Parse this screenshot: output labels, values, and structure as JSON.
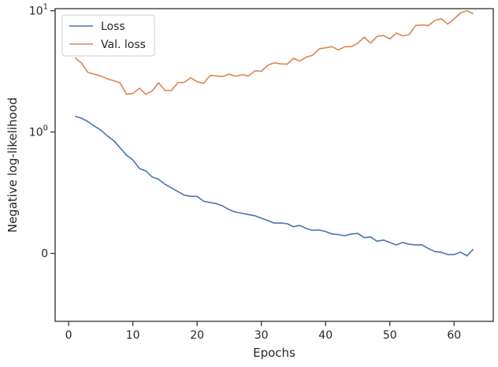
{
  "chart_data": {
    "type": "line",
    "xlabel": "Epochs",
    "ylabel": "Negative log-likelihood",
    "yscale": "symlog",
    "xlim": [
      -2.1,
      66.1
    ],
    "ylim": [
      -0.56,
      10.4
    ],
    "x_ticks": [
      0,
      10,
      20,
      30,
      40,
      50,
      60
    ],
    "x_tick_labels": [
      "0",
      "10",
      "20",
      "30",
      "40",
      "50",
      "60"
    ],
    "y_ticks": [
      {
        "value": 0,
        "label": "0",
        "exp": ""
      },
      {
        "value": 1,
        "label": "10",
        "exp": "0"
      },
      {
        "value": 10,
        "label": "10",
        "exp": "1"
      }
    ],
    "grid": false,
    "legend": "top-left",
    "series": [
      {
        "name": "Loss",
        "color": "#4c72b0",
        "x": [
          1,
          2,
          3,
          4,
          5,
          6,
          7,
          8,
          9,
          10,
          11,
          12,
          13,
          14,
          15,
          16,
          17,
          18,
          19,
          20,
          21,
          22,
          23,
          24,
          25,
          26,
          27,
          28,
          29,
          30,
          31,
          32,
          33,
          34,
          35,
          36,
          37,
          38,
          39,
          40,
          41,
          42,
          43,
          44,
          45,
          46,
          47,
          48,
          49,
          50,
          51,
          52,
          53,
          54,
          55,
          56,
          57,
          58,
          59,
          60,
          61,
          62,
          63
        ],
        "values": [
          1.35,
          1.3,
          1.22,
          1.12,
          1.04,
          0.97,
          0.93,
          0.87,
          0.81,
          0.77,
          0.7,
          0.68,
          0.63,
          0.61,
          0.57,
          0.54,
          0.51,
          0.48,
          0.47,
          0.47,
          0.43,
          0.42,
          0.41,
          0.39,
          0.36,
          0.34,
          0.33,
          0.32,
          0.31,
          0.29,
          0.27,
          0.25,
          0.25,
          0.245,
          0.22,
          0.23,
          0.205,
          0.19,
          0.193,
          0.18,
          0.16,
          0.155,
          0.145,
          0.16,
          0.165,
          0.13,
          0.135,
          0.1,
          0.11,
          0.09,
          0.07,
          0.09,
          0.075,
          0.07,
          0.07,
          0.04,
          0.015,
          0.01,
          -0.01,
          -0.01,
          0.01,
          -0.02,
          0.035
        ]
      },
      {
        "name": "Val. loss",
        "color": "#dd8452",
        "x": [
          1,
          2,
          3,
          4,
          5,
          6,
          7,
          8,
          9,
          10,
          11,
          12,
          13,
          14,
          15,
          16,
          17,
          18,
          19,
          20,
          21,
          22,
          23,
          24,
          25,
          26,
          27,
          28,
          29,
          30,
          31,
          32,
          33,
          34,
          35,
          36,
          37,
          38,
          39,
          40,
          41,
          42,
          43,
          44,
          45,
          46,
          47,
          48,
          49,
          50,
          51,
          52,
          53,
          54,
          55,
          56,
          57,
          58,
          59,
          60,
          61,
          62,
          63
        ],
        "values": [
          4.1,
          3.7,
          3.1,
          3.0,
          2.9,
          2.75,
          2.65,
          2.55,
          2.05,
          2.08,
          2.3,
          2.05,
          2.18,
          2.55,
          2.2,
          2.2,
          2.55,
          2.57,
          2.8,
          2.6,
          2.52,
          2.92,
          2.9,
          2.87,
          3.0,
          2.88,
          2.97,
          2.9,
          3.2,
          3.17,
          3.55,
          3.72,
          3.65,
          3.62,
          4.05,
          3.85,
          4.15,
          4.3,
          4.85,
          4.95,
          5.05,
          4.75,
          5.05,
          5.05,
          5.4,
          6.05,
          5.4,
          6.15,
          6.25,
          5.85,
          6.55,
          6.2,
          6.35,
          7.55,
          7.65,
          7.55,
          8.3,
          8.6,
          7.75,
          8.55,
          9.6,
          10.0,
          9.45
        ]
      }
    ]
  }
}
